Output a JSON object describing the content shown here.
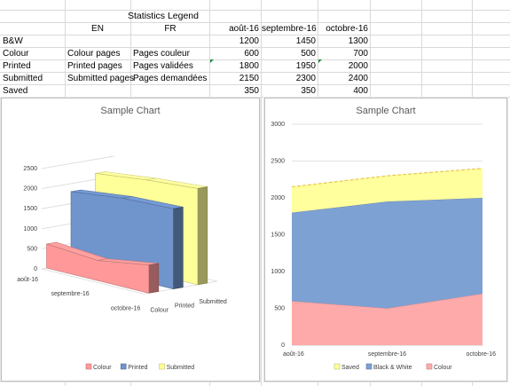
{
  "sheet": {
    "legend_title": "Statistics Legend",
    "col_headers": {
      "en": "EN",
      "fr": "FR",
      "m1": "août-16",
      "m2": "septembre-16",
      "m3": "octobre-16"
    },
    "rows": [
      {
        "key": "B&W",
        "en": "",
        "fr": "",
        "v1": "1200",
        "v2": "1450",
        "v3": "1300"
      },
      {
        "key": "Colour",
        "en": "Colour pages",
        "fr": "Pages couleur",
        "v1": "600",
        "v2": "500",
        "v3": "700"
      },
      {
        "key": "Printed",
        "en": "Printed pages",
        "fr": "Pages validées",
        "v1": "1800",
        "v2": "1950",
        "v3": "2000"
      },
      {
        "key": "Submitted",
        "en": "Submitted pages",
        "fr": "Pages demandées",
        "v1": "2150",
        "v2": "2300",
        "v3": "2400"
      },
      {
        "key": "Saved",
        "en": "",
        "fr": "",
        "v1": "350",
        "v2": "350",
        "v3": "400"
      }
    ]
  },
  "chart_data": [
    {
      "type": "bar",
      "subtype": "3d",
      "title": "Sample Chart",
      "categories": [
        "août-16",
        "septembre-16",
        "octobre-16"
      ],
      "series": [
        {
          "name": "Colour",
          "values": [
            600,
            500,
            700
          ],
          "color": "#ff9999"
        },
        {
          "name": "Printed",
          "values": [
            1800,
            1950,
            2000
          ],
          "color": "#7094cc"
        },
        {
          "name": "Submitted",
          "values": [
            2150,
            2300,
            2400
          ],
          "color": "#ffff99"
        }
      ],
      "ylim": [
        0,
        2500
      ],
      "yticks": [
        "0",
        "500",
        "1000",
        "1500",
        "2000",
        "2500"
      ],
      "depth_labels": [
        "Colour",
        "Printed",
        "Submitted"
      ],
      "legend_position": "bottom",
      "legend": [
        "Colour",
        "Printed",
        "Submitted"
      ]
    },
    {
      "type": "area",
      "stacked": true,
      "title": "Sample Chart",
      "categories": [
        "août-16",
        "septembre-16",
        "octobre-16"
      ],
      "series": [
        {
          "name": "Colour",
          "values": [
            600,
            500,
            700
          ],
          "color": "#ffaaaa"
        },
        {
          "name": "Black & White",
          "values": [
            1200,
            1450,
            1300
          ],
          "color": "#7ea1d3"
        },
        {
          "name": "Saved",
          "values": [
            350,
            350,
            400
          ],
          "color": "#ffff9e"
        }
      ],
      "ylim": [
        0,
        3000
      ],
      "yticks": [
        "0",
        "500",
        "1000",
        "1500",
        "2000",
        "2500",
        "3000"
      ],
      "legend_position": "bottom",
      "legend": [
        "Saved",
        "Black & White",
        "Colour"
      ]
    }
  ]
}
